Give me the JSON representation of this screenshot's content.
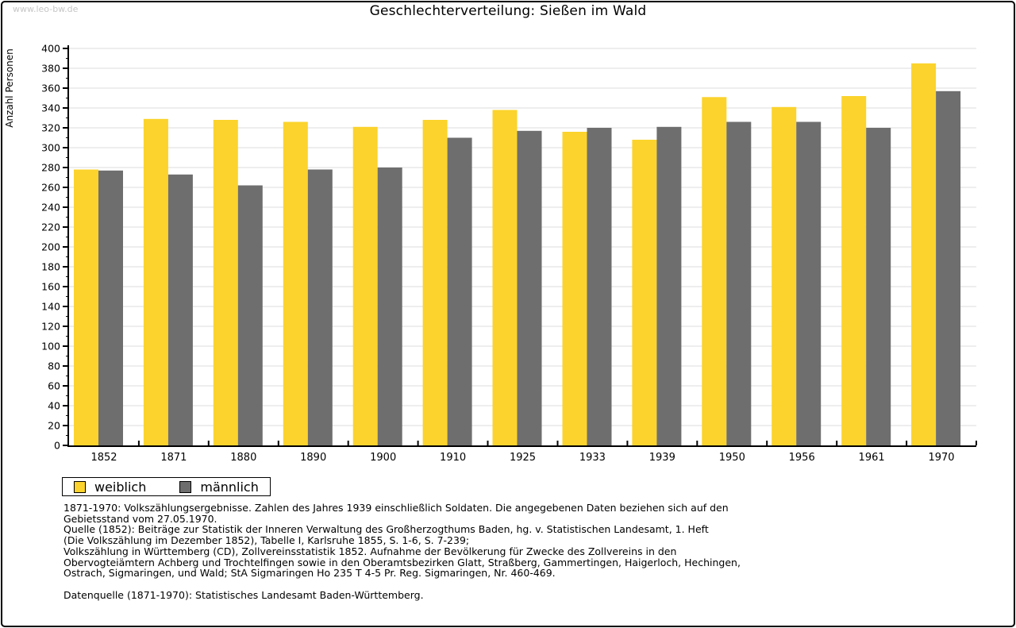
{
  "page": {
    "watermark": "www.leo-bw.de",
    "title": "Geschlechterverteilung: Sießen im Wald"
  },
  "chart_data": {
    "type": "bar",
    "title": "Geschlechterverteilung: Sießen im Wald",
    "xlabel": "",
    "ylabel": "Anzahl Personen",
    "ylim": [
      0,
      400
    ],
    "ytick_step": 20,
    "yminor_step": 10,
    "grid": true,
    "legend_position": "bottom-left",
    "categories": [
      "1852",
      "1871",
      "1880",
      "1890",
      "1900",
      "1910",
      "1925",
      "1933",
      "1939",
      "1950",
      "1956",
      "1961",
      "1970"
    ],
    "series": [
      {
        "name": "weiblich",
        "color": "#FBD32C",
        "values": [
          278,
          329,
          328,
          326,
          321,
          328,
          338,
          316,
          308,
          351,
          341,
          352,
          385
        ]
      },
      {
        "name": "männlich",
        "color": "#6E6E6E",
        "values": [
          277,
          273,
          262,
          278,
          280,
          310,
          317,
          320,
          321,
          326,
          326,
          320,
          357
        ]
      }
    ]
  },
  "footnotes": {
    "lines": [
      "1871-1970: Volkszählungsergebnisse. Zahlen des Jahres 1939 einschließlich Soldaten. Die angegebenen Daten beziehen sich auf den",
      "Gebietsstand vom 27.05.1970.",
      "Quelle (1852): Beiträge zur Statistik der Inneren Verwaltung des Großherzogthums Baden, hg. v. Statistischen Landesamt, 1. Heft",
      "(Die Volkszählung im Dezember 1852), Tabelle I, Karlsruhe 1855, S. 1-6, S. 7-239;",
      "Volkszählung in Württemberg (CD), Zollvereinsstatistik 1852. Aufnahme der Bevölkerung für Zwecke des Zollvereins in den",
      "Obervogteiämtern Achberg und Trochtelfingen sowie in den Oberamtsbezirken Glatt, Straßberg, Gammertingen, Haigerloch, Hechingen,",
      "Ostrach, Sigmaringen, und Wald; StA Sigmaringen Ho 235 T 4-5 Pr. Reg. Sigmaringen, Nr. 460-469.",
      "",
      "Datenquelle (1871-1970): Statistisches Landesamt Baden-Württemberg."
    ]
  }
}
